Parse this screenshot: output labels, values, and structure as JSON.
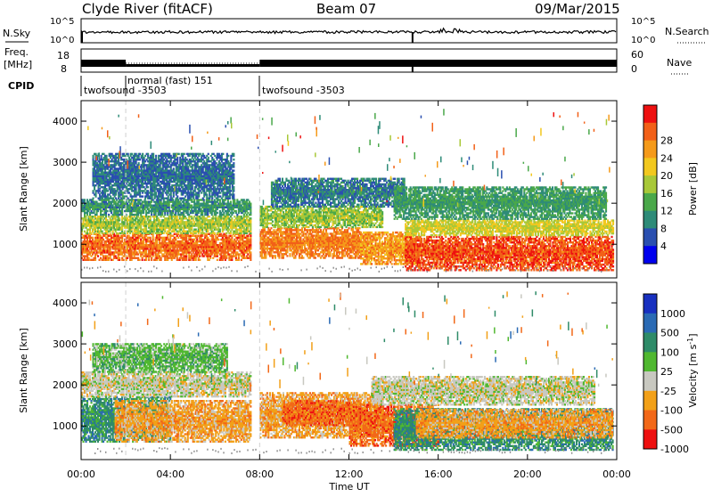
{
  "header": {
    "station": "Clyde River (fitACF)",
    "beam": "Beam 07",
    "date": "09/Mar/2015"
  },
  "nsky_panel": {
    "left_label": "N.Sky",
    "left_ticks": [
      "10^5",
      "10^0"
    ],
    "right_ticks": [
      "10^5",
      "10^0"
    ],
    "right_label": "N.Search"
  },
  "freq_panel": {
    "left_label_top": "Freq.",
    "left_label_bottom": "[MHz]",
    "left_ticks": [
      "18",
      "8"
    ],
    "right_ticks": [
      "60",
      "0"
    ],
    "right_label": "Nave"
  },
  "cpid_panel": {
    "label": "CPID",
    "modes": [
      {
        "name": "twofsound -3503"
      },
      {
        "name": "normal (fast) 151"
      },
      {
        "name": "twofsound -3503"
      }
    ]
  },
  "x_axis": {
    "label": "Time UT",
    "ticks": [
      "00:00",
      "04:00",
      "08:00",
      "12:00",
      "16:00",
      "20:00",
      "00:00"
    ]
  },
  "chart_data": [
    {
      "type": "heatmap",
      "title": "",
      "xlabel": "",
      "ylabel": "Slant Range [km]",
      "x_range_hours": [
        0,
        24
      ],
      "ylim": [
        180,
        4500
      ],
      "y_ticks": [
        "1000",
        "2000",
        "3000",
        "4000"
      ],
      "colorbar": {
        "label": "Power [dB]",
        "ticks": [
          "4",
          "8",
          "12",
          "16",
          "20",
          "24",
          "28"
        ],
        "range": [
          0,
          32
        ],
        "colors": [
          "#0000ee",
          "#2a4fb0",
          "#2e8b78",
          "#4aa84a",
          "#a8c838",
          "#f2c81e",
          "#f59a1a",
          "#f26018",
          "#ee1010"
        ]
      },
      "bands": [
        {
          "t0": 0.0,
          "t1": 7.6,
          "r_lo": 600,
          "r_hi": 1250,
          "level": 27
        },
        {
          "t0": 0.0,
          "t1": 7.6,
          "r_lo": 1250,
          "r_hi": 1700,
          "level": 16
        },
        {
          "t0": 0.0,
          "t1": 7.6,
          "r_lo": 1700,
          "r_hi": 2100,
          "level": 9
        },
        {
          "t0": 0.5,
          "t1": 6.8,
          "r_lo": 2100,
          "r_hi": 3200,
          "level": 6
        },
        {
          "t0": 8.0,
          "t1": 12.5,
          "r_lo": 650,
          "r_hi": 1400,
          "level": 26
        },
        {
          "t0": 8.0,
          "t1": 13.5,
          "r_lo": 1400,
          "r_hi": 1900,
          "level": 15
        },
        {
          "t0": 8.5,
          "t1": 14.5,
          "r_lo": 1900,
          "r_hi": 2600,
          "level": 7
        },
        {
          "t0": 12.5,
          "t1": 15.0,
          "r_lo": 500,
          "r_hi": 1300,
          "level": 24
        },
        {
          "t0": 14.5,
          "t1": 23.8,
          "r_lo": 350,
          "r_hi": 1200,
          "level": 29
        },
        {
          "t0": 14.5,
          "t1": 23.8,
          "r_lo": 1200,
          "r_hi": 1600,
          "level": 18
        },
        {
          "t0": 14.0,
          "t1": 23.5,
          "r_lo": 1600,
          "r_hi": 2400,
          "level": 10
        }
      ]
    },
    {
      "type": "heatmap",
      "title": "",
      "xlabel": "Time UT",
      "ylabel": "Slant Range [km]",
      "x_range_hours": [
        0,
        24
      ],
      "ylim": [
        180,
        4500
      ],
      "y_ticks": [
        "1000",
        "2000",
        "3000",
        "4000"
      ],
      "colorbar": {
        "label": "Velocity [m s^-1]",
        "ticks": [
          "1000",
          "500",
          "100",
          "25",
          "-25",
          "-100",
          "-500",
          "-1000"
        ],
        "colors": [
          "#1830c0",
          "#2a6ab4",
          "#2e8b68",
          "#50b830",
          "#c8c8c0",
          "#f2a018",
          "#f26818",
          "#ee1010"
        ]
      },
      "bands": [
        {
          "t0": 0.0,
          "t1": 4.0,
          "r_lo": 600,
          "r_hi": 1700,
          "cls": 2
        },
        {
          "t0": 1.5,
          "t1": 7.6,
          "r_lo": 600,
          "r_hi": 1600,
          "cls": 5
        },
        {
          "t0": 0.0,
          "t1": 7.6,
          "r_lo": 1700,
          "r_hi": 2300,
          "cls": 4
        },
        {
          "t0": 0.5,
          "t1": 6.5,
          "r_lo": 2300,
          "r_hi": 3000,
          "cls": 3
        },
        {
          "t0": 8.0,
          "t1": 13.5,
          "r_lo": 700,
          "r_hi": 1800,
          "cls": 5
        },
        {
          "t0": 9.0,
          "t1": 12.5,
          "r_lo": 1000,
          "r_hi": 1600,
          "cls": 6
        },
        {
          "t0": 12.0,
          "t1": 16.0,
          "r_lo": 500,
          "r_hi": 1500,
          "cls": 6
        },
        {
          "t0": 14.0,
          "t1": 23.8,
          "r_lo": 400,
          "r_hi": 1400,
          "cls": 2
        },
        {
          "t0": 15.0,
          "t1": 23.8,
          "r_lo": 700,
          "r_hi": 1400,
          "cls": 5
        },
        {
          "t0": 13.0,
          "t1": 23.0,
          "r_lo": 1500,
          "r_hi": 2200,
          "cls": 4
        }
      ]
    }
  ]
}
